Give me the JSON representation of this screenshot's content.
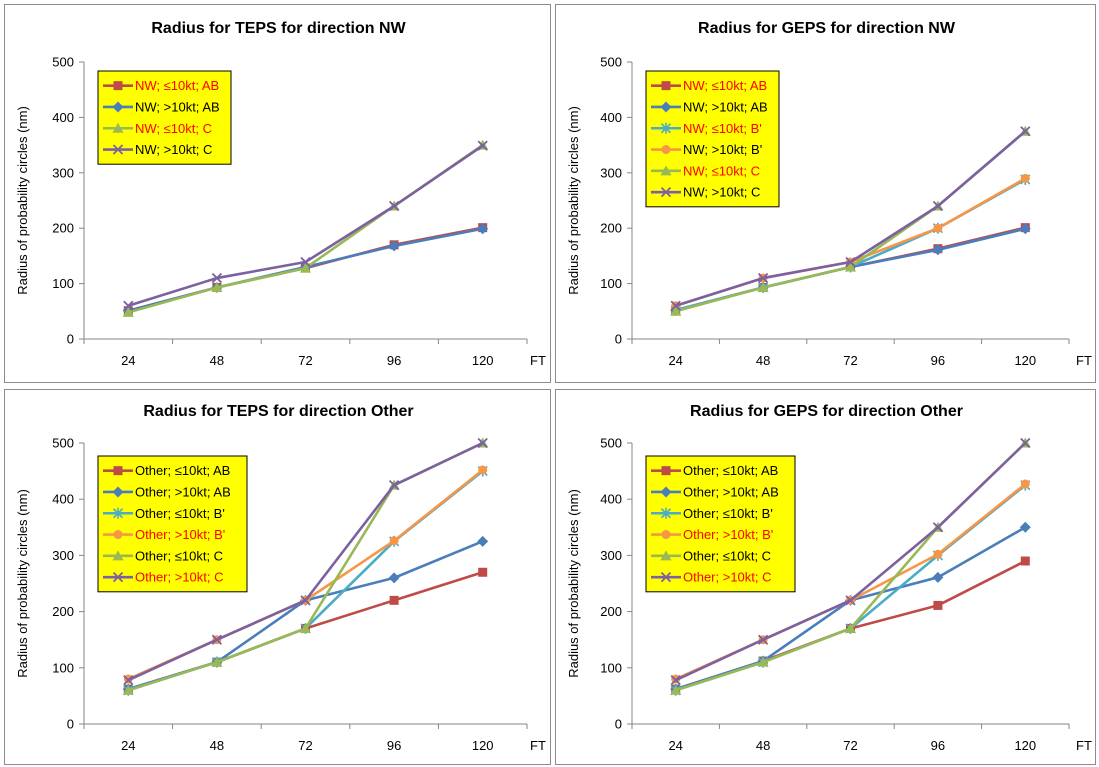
{
  "chart_data": [
    {
      "type": "line",
      "title": "Radius for TEPS for direction NW",
      "ylabel": "Radius of probability circles (nm)",
      "xlabel": "FT",
      "categories": [
        "24",
        "48",
        "72",
        "96",
        "120"
      ],
      "ylim": [
        0,
        500
      ],
      "yticks": [
        0,
        100,
        200,
        300,
        400,
        500
      ],
      "legend_position": "top-left",
      "legend_background": "#ffff00",
      "series": [
        {
          "name": "NW; ≤10kt; AB",
          "color": "#be4b48",
          "marker": "square",
          "label_color": "#ff0000",
          "values": [
            51,
            93,
            128,
            170,
            201
          ]
        },
        {
          "name": "NW; >10kt; AB",
          "color": "#4a7ebb",
          "marker": "diamond",
          "label_color": "#000000",
          "values": [
            51,
            93,
            130,
            168,
            199
          ]
        },
        {
          "name": "NW; ≤10kt; C",
          "color": "#98b954",
          "marker": "triangle",
          "label_color": "#ff0000",
          "values": [
            48,
            93,
            128,
            240,
            350
          ]
        },
        {
          "name": "NW; >10kt; C",
          "color": "#7d60a0",
          "marker": "x",
          "label_color": "#000000",
          "values": [
            60,
            110,
            139,
            240,
            349
          ]
        }
      ]
    },
    {
      "type": "line",
      "title": "Radius for GEPS for direction NW",
      "ylabel": "Radius of probability circles (nm)",
      "xlabel": "FT",
      "categories": [
        "24",
        "48",
        "72",
        "96",
        "120"
      ],
      "ylim": [
        0,
        500
      ],
      "yticks": [
        0,
        100,
        200,
        300,
        400,
        500
      ],
      "legend_position": "top-left",
      "legend_background": "#ffff00",
      "series": [
        {
          "name": "NW; ≤10kt; AB",
          "color": "#be4b48",
          "marker": "square",
          "label_color": "#ff0000",
          "values": [
            52,
            93,
            130,
            163,
            201
          ]
        },
        {
          "name": "NW; >10kt; AB",
          "color": "#4a7ebb",
          "marker": "diamond",
          "label_color": "#000000",
          "values": [
            52,
            93,
            130,
            161,
            199
          ]
        },
        {
          "name": "NW; ≤10kt; B'",
          "color": "#4bacc6",
          "marker": "star",
          "label_color": "#ff0000",
          "values": [
            52,
            93,
            130,
            200,
            288
          ]
        },
        {
          "name": "NW; >10kt; B'",
          "color": "#f79646",
          "marker": "circle",
          "label_color": "#000000",
          "values": [
            60,
            110,
            139,
            200,
            290
          ]
        },
        {
          "name": "NW; ≤10kt; C",
          "color": "#98b954",
          "marker": "triangle",
          "label_color": "#ff0000",
          "values": [
            50,
            93,
            130,
            240,
            375
          ]
        },
        {
          "name": "NW; >10kt; C",
          "color": "#7d60a0",
          "marker": "x",
          "label_color": "#000000",
          "values": [
            60,
            110,
            139,
            240,
            375
          ]
        }
      ]
    },
    {
      "type": "line",
      "title": "Radius for TEPS for direction Other",
      "ylabel": "Radius of probability circles (nm)",
      "xlabel": "FT",
      "categories": [
        "24",
        "48",
        "72",
        "96",
        "120"
      ],
      "ylim": [
        0,
        500
      ],
      "yticks": [
        0,
        100,
        200,
        300,
        400,
        500
      ],
      "legend_position": "top-left",
      "legend_background": "#ffff00",
      "series": [
        {
          "name": "Other; ≤10kt; AB",
          "color": "#be4b48",
          "marker": "square",
          "label_color": "#000000",
          "values": [
            62,
            110,
            170,
            220,
            270
          ]
        },
        {
          "name": "Other; >10kt; AB",
          "color": "#4a7ebb",
          "marker": "diamond",
          "label_color": "#000000",
          "values": [
            62,
            110,
            220,
            260,
            325
          ]
        },
        {
          "name": "Other; ≤10kt; B'",
          "color": "#4bacc6",
          "marker": "star",
          "label_color": "#000000",
          "values": [
            60,
            110,
            170,
            325,
            450
          ]
        },
        {
          "name": "Other; >10kt; B'",
          "color": "#f79646",
          "marker": "circle",
          "label_color": "#ff0000",
          "values": [
            80,
            150,
            220,
            326,
            452
          ]
        },
        {
          "name": "Other; ≤10kt; C",
          "color": "#98b954",
          "marker": "triangle",
          "label_color": "#000000",
          "values": [
            60,
            110,
            170,
            425,
            500
          ]
        },
        {
          "name": "Other; >10kt; C",
          "color": "#7d60a0",
          "marker": "x",
          "label_color": "#ff0000",
          "values": [
            78,
            150,
            220,
            425,
            500
          ]
        }
      ]
    },
    {
      "type": "line",
      "title": "Radius for GEPS for direction Other",
      "ylabel": "Radius of probability circles (nm)",
      "xlabel": "FT",
      "categories": [
        "24",
        "48",
        "72",
        "96",
        "120"
      ],
      "ylim": [
        0,
        500
      ],
      "yticks": [
        0,
        100,
        200,
        300,
        400,
        500
      ],
      "legend_position": "top-left",
      "legend_background": "#ffff00",
      "series": [
        {
          "name": "Other; ≤10kt; AB",
          "color": "#be4b48",
          "marker": "square",
          "label_color": "#000000",
          "values": [
            62,
            112,
            170,
            211,
            290
          ]
        },
        {
          "name": "Other; >10kt; AB",
          "color": "#4a7ebb",
          "marker": "diamond",
          "label_color": "#000000",
          "values": [
            62,
            112,
            220,
            261,
            350
          ]
        },
        {
          "name": "Other; ≤10kt; B'",
          "color": "#4bacc6",
          "marker": "star",
          "label_color": "#000000",
          "values": [
            60,
            110,
            170,
            300,
            425
          ]
        },
        {
          "name": "Other; >10kt; B'",
          "color": "#f79646",
          "marker": "circle",
          "label_color": "#ff0000",
          "values": [
            80,
            150,
            220,
            302,
            427
          ]
        },
        {
          "name": "Other; ≤10kt; C",
          "color": "#98b954",
          "marker": "triangle",
          "label_color": "#000000",
          "values": [
            60,
            110,
            170,
            350,
            500
          ]
        },
        {
          "name": "Other; >10kt; C",
          "color": "#7d60a0",
          "marker": "x",
          "label_color": "#ff0000",
          "values": [
            78,
            150,
            220,
            350,
            500
          ]
        }
      ]
    }
  ]
}
